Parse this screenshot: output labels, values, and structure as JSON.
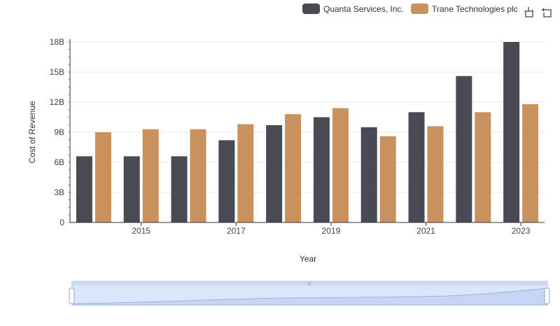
{
  "chart_data": {
    "type": "bar",
    "title": "",
    "xlabel": "Year",
    "ylabel": "Cost of Revenue",
    "categories": [
      "2014",
      "2015",
      "2016",
      "2017",
      "2018",
      "2019",
      "2020",
      "2021",
      "2022",
      "2023"
    ],
    "x_tick_labels": [
      "2015",
      "2017",
      "2019",
      "2021",
      "2023"
    ],
    "y_tick_labels": [
      "0",
      "3B",
      "6B",
      "9B",
      "12B",
      "15B",
      "18B"
    ],
    "ylim": [
      0,
      18
    ],
    "y_unit": "billions",
    "legend_position": "top-right",
    "series": [
      {
        "name": "Quanta Services, Inc.",
        "color": "#4a4a55",
        "values": [
          6.6,
          6.6,
          6.6,
          8.2,
          9.7,
          10.5,
          9.5,
          11.0,
          14.6,
          18.0
        ]
      },
      {
        "name": "Trane Technologies plc",
        "color": "#c8915e",
        "values": [
          9.0,
          9.3,
          9.3,
          9.8,
          10.8,
          11.4,
          8.6,
          9.6,
          11.0,
          11.8
        ]
      }
    ],
    "grid": true
  },
  "toolbar": {
    "icons": [
      "zoom-icon",
      "reset-zoom-icon"
    ]
  },
  "colors": {
    "grid": "#e8e8e8",
    "axis": "#333333",
    "slider_fill": "#dbe6fb",
    "slider_border": "#b8c7e8",
    "slider_line": "#8fa8d8"
  }
}
